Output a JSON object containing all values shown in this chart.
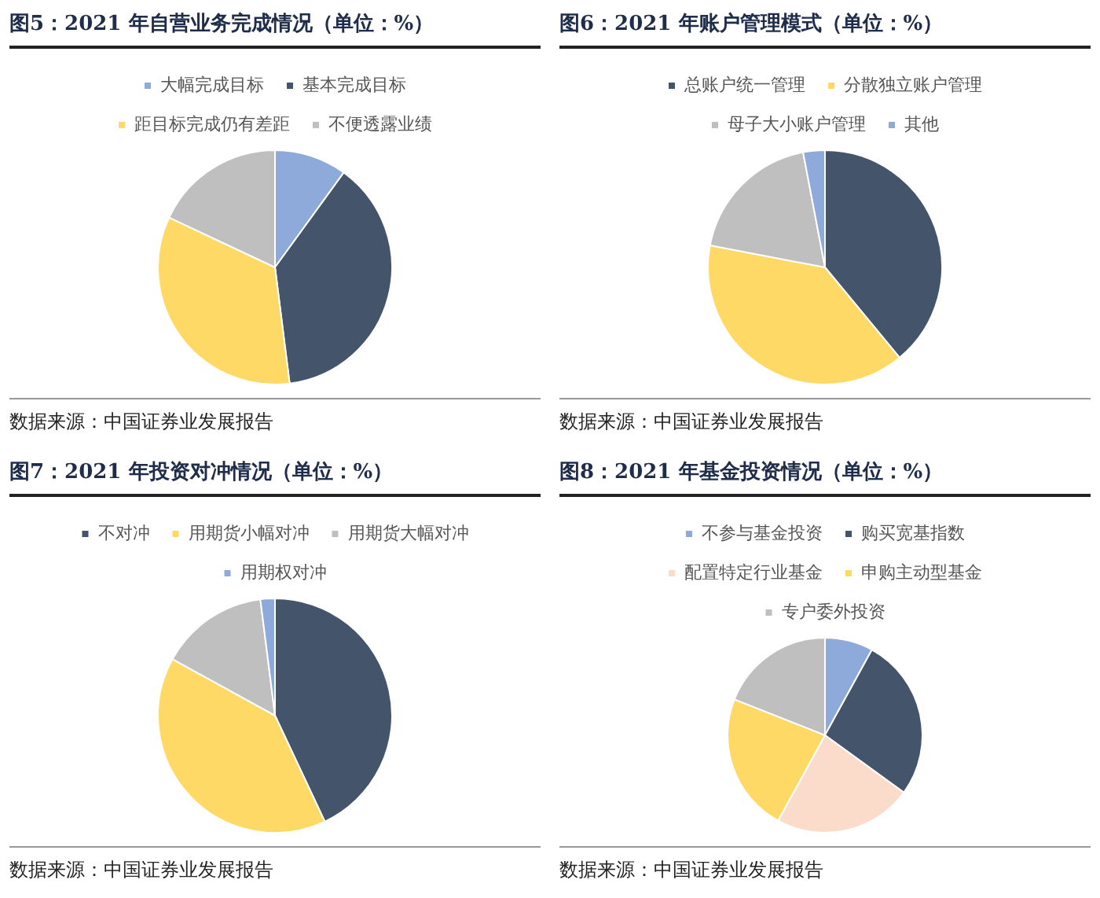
{
  "chart_data": [
    {
      "type": "pie",
      "title": "图5：2021 年自营业务完成情况（单位：%）",
      "categories": [
        "大幅完成目标",
        "基本完成目标",
        "距目标完成仍有差距",
        "不便透露业绩"
      ],
      "values": [
        10,
        38,
        34,
        18
      ],
      "colors": [
        "#8eaadb",
        "#44546a",
        "#ffd966",
        "#bfbfbf"
      ],
      "legend": "top",
      "annotations": [
        "数据来源：中国证券业发展报告"
      ]
    },
    {
      "type": "pie",
      "title": "图6：2021 年账户管理模式（单位：%）",
      "categories": [
        "总账户统一管理",
        "分散独立账户管理",
        "母子大小账户管理",
        "其他"
      ],
      "values": [
        39,
        39,
        19,
        3
      ],
      "colors": [
        "#44546a",
        "#ffd966",
        "#bfbfbf",
        "#8eaadb"
      ],
      "legend": "top",
      "annotations": [
        "数据来源：中国证券业发展报告"
      ]
    },
    {
      "type": "pie",
      "title": "图7：2021 年投资对冲情况（单位：%）",
      "categories": [
        "不对冲",
        "用期货小幅对冲",
        "用期货大幅对冲",
        "用期权对冲"
      ],
      "values": [
        43,
        40,
        15,
        2
      ],
      "colors": [
        "#44546a",
        "#ffd966",
        "#bfbfbf",
        "#8eaadb"
      ],
      "legend": "top",
      "annotations": [
        "数据来源：中国证券业发展报告"
      ]
    },
    {
      "type": "pie",
      "title": "图8：2021 年基金投资情况（单位：%）",
      "categories": [
        "不参与基金投资",
        "购买宽基指数",
        "配置特定行业基金",
        "申购主动型基金",
        "专户委外投资"
      ],
      "values": [
        8,
        27,
        23,
        23,
        19
      ],
      "colors": [
        "#8eaadb",
        "#44546a",
        "#fbdccb",
        "#ffd966",
        "#bfbfbf"
      ],
      "legend": "top",
      "annotations": [
        "数据来源：中国证券业发展报告"
      ]
    }
  ]
}
